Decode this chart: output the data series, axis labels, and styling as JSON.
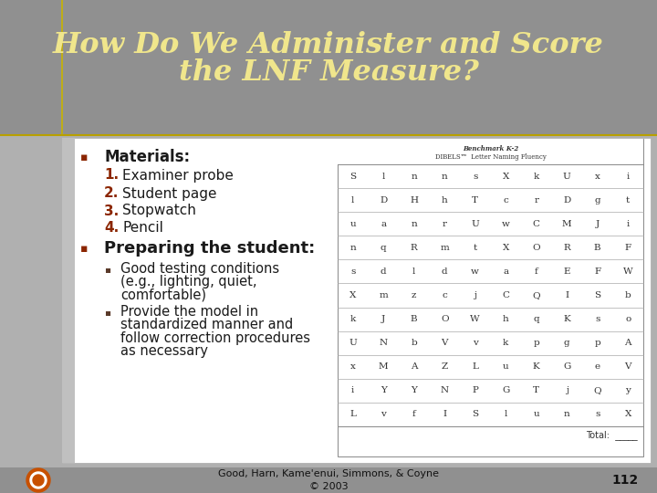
{
  "title_line1": "How Do We Administer and Score",
  "title_line2": "the LNF Measure?",
  "title_color": "#f0e68c",
  "title_fontsize": 24,
  "bg_header_color": "#909090",
  "bg_body_color": "#b8b8b8",
  "bullet1_text": "Materials:",
  "bullet1_items": [
    "Examiner probe",
    "Student page",
    "Stopwatch",
    "Pencil"
  ],
  "bullet2_text": "Preparing the student:",
  "bullet2_sub_line1": [
    "Good testing conditions",
    "(e.g., lighting, quiet,",
    "comfortable)"
  ],
  "bullet2_sub_line2": [
    "Provide the model in",
    "standardized manner and",
    "follow correction procedures",
    "as necessary"
  ],
  "footer_text": "Good, Harn, Kame'enui, Simmons, & Coyne\n© 2003",
  "page_number": "112",
  "number_color": "#8b2500",
  "bullet_color": "#8b2500",
  "text_color": "#1a1a1a",
  "table_rows": [
    [
      "S",
      "l",
      "n",
      "n",
      "s",
      "X",
      "k",
      "U",
      "x",
      "i"
    ],
    [
      "l",
      "D",
      "H",
      "h",
      "T",
      "c",
      "r",
      "D",
      "g",
      "t"
    ],
    [
      "u",
      "a",
      "n",
      "r",
      "U",
      "w",
      "C",
      "M",
      "J",
      "i"
    ],
    [
      "n",
      "q",
      "R",
      "m",
      "t",
      "X",
      "O",
      "R",
      "B",
      "F"
    ],
    [
      "s",
      "d",
      "l",
      "d",
      "w",
      "a",
      "f",
      "E",
      "F",
      "W"
    ],
    [
      "X",
      "m",
      "z",
      "c",
      "j",
      "C",
      "Q",
      "I",
      "S",
      "b"
    ],
    [
      "k",
      "J",
      "B",
      "O",
      "W",
      "h",
      "q",
      "K",
      "s",
      "o"
    ],
    [
      "U",
      "N",
      "b",
      "V",
      "v",
      "k",
      "p",
      "g",
      "p",
      "A"
    ],
    [
      "x",
      "M",
      "A",
      "Z",
      "L",
      "u",
      "K",
      "G",
      "e",
      "V"
    ],
    [
      "i",
      "Y",
      "Y",
      "N",
      "P",
      "G",
      "T",
      "j",
      "Q",
      "y"
    ],
    [
      "L",
      "v",
      "f",
      "I",
      "S",
      "l",
      "u",
      "n",
      "s",
      "X"
    ]
  ],
  "total_label": "Total:",
  "table_header1": "Benchmark K-2",
  "table_header2": "DIBELS™  Letter Naming Fluency"
}
